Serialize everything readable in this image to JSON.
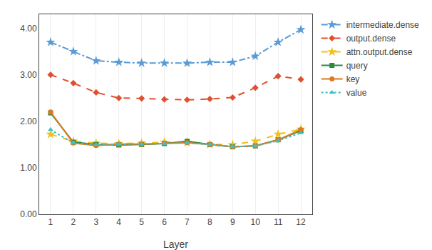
{
  "chart_data": {
    "type": "line",
    "xlabel": "Layer",
    "x": [
      1,
      2,
      3,
      4,
      5,
      6,
      7,
      8,
      9,
      10,
      11,
      12
    ],
    "xlim": [
      0.5,
      12.5
    ],
    "xticks": [
      1,
      2,
      3,
      4,
      5,
      6,
      7,
      8,
      9,
      10,
      11,
      12
    ],
    "ylim": [
      0.0,
      4.3
    ],
    "yticks": [
      {
        "value": 0.0,
        "label": "0.00"
      },
      {
        "value": 1.0,
        "label": "1.00"
      },
      {
        "value": 2.0,
        "label": "2.00"
      },
      {
        "value": 3.0,
        "label": "3.00"
      },
      {
        "value": 4.0,
        "label": "4.00"
      }
    ],
    "grid": "x",
    "legend": "right",
    "series": [
      {
        "name": "intermediate.dense",
        "color": "#5B9BD5",
        "marker": "star",
        "line_style": "dashdot",
        "values": [
          3.7,
          3.5,
          3.3,
          3.27,
          3.25,
          3.25,
          3.25,
          3.27,
          3.27,
          3.4,
          3.7,
          3.97
        ]
      },
      {
        "name": "output.dense",
        "color": "#E05030",
        "marker": "diamond",
        "line_style": "dash",
        "values": [
          3.0,
          2.82,
          2.62,
          2.5,
          2.49,
          2.47,
          2.46,
          2.48,
          2.51,
          2.72,
          2.97,
          2.9
        ]
      },
      {
        "name": "attn.output.dense",
        "color": "#F0C020",
        "marker": "star",
        "line_style": "dash",
        "values": [
          1.72,
          1.57,
          1.53,
          1.52,
          1.53,
          1.55,
          1.54,
          1.5,
          1.5,
          1.57,
          1.72,
          1.83
        ]
      },
      {
        "name": "query",
        "color": "#2A8A40",
        "marker": "square",
        "line_style": "solid",
        "values": [
          2.18,
          1.55,
          1.5,
          1.49,
          1.5,
          1.52,
          1.57,
          1.5,
          1.45,
          1.47,
          1.6,
          1.8
        ]
      },
      {
        "name": "key",
        "color": "#E07820",
        "marker": "circle",
        "line_style": "solid",
        "values": [
          2.2,
          1.53,
          1.48,
          1.51,
          1.51,
          1.53,
          1.54,
          1.5,
          1.45,
          1.47,
          1.6,
          1.82
        ]
      },
      {
        "name": "value",
        "color": "#40C0C0",
        "marker": "triangle-up",
        "line_style": "dot",
        "values": [
          1.82,
          1.53,
          1.5,
          1.51,
          1.51,
          1.52,
          1.53,
          1.5,
          1.45,
          1.47,
          1.58,
          1.75
        ]
      }
    ]
  }
}
